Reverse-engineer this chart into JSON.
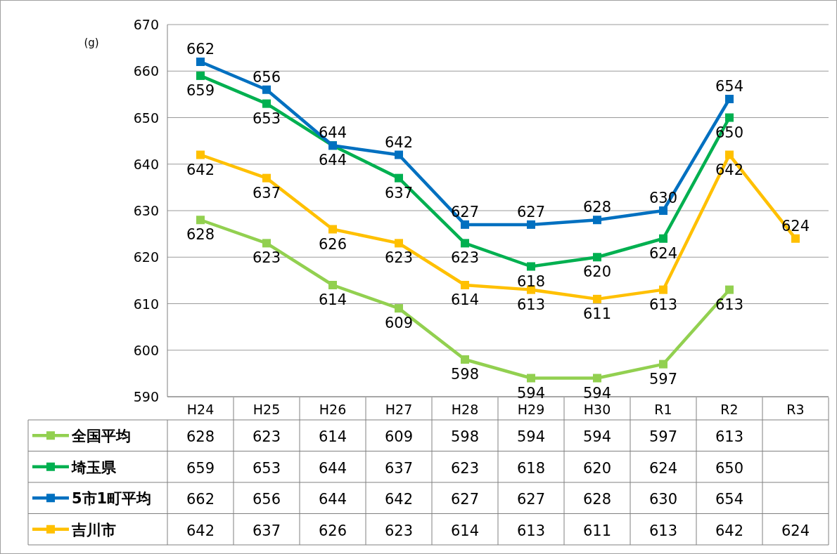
{
  "chart_data": {
    "type": "line",
    "ylabel": "(g)",
    "categories": [
      "H24",
      "H25",
      "H26",
      "H27",
      "H28",
      "H29",
      "H30",
      "R1",
      "R2",
      "R3"
    ],
    "series": [
      {
        "name": "全国平均",
        "color": "#92d050",
        "values": [
          628,
          623,
          614,
          609,
          598,
          594,
          594,
          597,
          613,
          null
        ]
      },
      {
        "name": "埼玉県",
        "color": "#00b050",
        "values": [
          659,
          653,
          644,
          637,
          623,
          618,
          620,
          624,
          650,
          null
        ]
      },
      {
        "name": "5市1町平均",
        "color": "#0070c0",
        "values": [
          662,
          656,
          644,
          642,
          627,
          627,
          628,
          630,
          654,
          null
        ]
      },
      {
        "name": "吉川市",
        "color": "#ffc000",
        "values": [
          642,
          637,
          626,
          623,
          614,
          613,
          611,
          613,
          642,
          624
        ]
      }
    ],
    "annotations": [
      {
        "text": "628",
        "x": "H24",
        "y": 628
      },
      {
        "text": "623",
        "x": "H25",
        "y": 623
      },
      {
        "text": "614",
        "x": "H26",
        "y": 614
      },
      {
        "text": "609",
        "x": "H27",
        "y": 609
      },
      {
        "text": "598",
        "x": "H28",
        "y": 598
      },
      {
        "text": "594",
        "x": "H29",
        "y": 594
      },
      {
        "text": "594",
        "x": "H30",
        "y": 594
      },
      {
        "text": "597",
        "x": "R1",
        "y": 597
      },
      {
        "text": "613",
        "x": "R2",
        "y": 613
      },
      {
        "text": "659",
        "x": "H24",
        "y": 659
      },
      {
        "text": "653",
        "x": "H25",
        "y": 653
      },
      {
        "text": "644",
        "x": "H26",
        "y": 644
      },
      {
        "text": "637",
        "x": "H27",
        "y": 637
      },
      {
        "text": "623",
        "x": "H28",
        "y": 623
      },
      {
        "text": "618",
        "x": "H29",
        "y": 618
      },
      {
        "text": "620",
        "x": "H30",
        "y": 620
      },
      {
        "text": "624",
        "x": "R1",
        "y": 624
      },
      {
        "text": "650",
        "x": "R2",
        "y": 650
      },
      {
        "text": "662",
        "x": "H24",
        "y": 662
      },
      {
        "text": "656",
        "x": "H25",
        "y": 656
      },
      {
        "text": "644",
        "x": "H26",
        "y": 644
      },
      {
        "text": "642",
        "x": "H27",
        "y": 642
      },
      {
        "text": "627",
        "x": "H28",
        "y": 627
      },
      {
        "text": "627",
        "x": "H29",
        "y": 627
      },
      {
        "text": "628",
        "x": "H30",
        "y": 628
      },
      {
        "text": "630",
        "x": "R1",
        "y": 630
      },
      {
        "text": "654",
        "x": "R2",
        "y": 654
      },
      {
        "text": "642",
        "x": "H24",
        "y": 642
      },
      {
        "text": "637",
        "x": "H25",
        "y": 637
      },
      {
        "text": "626",
        "x": "H26",
        "y": 626
      },
      {
        "text": "623",
        "x": "H27",
        "y": 623
      },
      {
        "text": "614",
        "x": "H28",
        "y": 614
      },
      {
        "text": "613",
        "x": "H29",
        "y": 613
      },
      {
        "text": "611",
        "x": "H30",
        "y": 611
      },
      {
        "text": "613",
        "x": "R1",
        "y": 613
      },
      {
        "text": "642",
        "x": "R2",
        "y": 642
      },
      {
        "text": "624",
        "x": "R3",
        "y": 624
      }
    ],
    "ylim": [
      590,
      670
    ],
    "yticks": [
      590,
      600,
      610,
      620,
      630,
      640,
      650,
      660,
      670
    ],
    "grid": "y",
    "legend": "left",
    "marker": "square",
    "line_style": "solid",
    "data_labels": true
  }
}
